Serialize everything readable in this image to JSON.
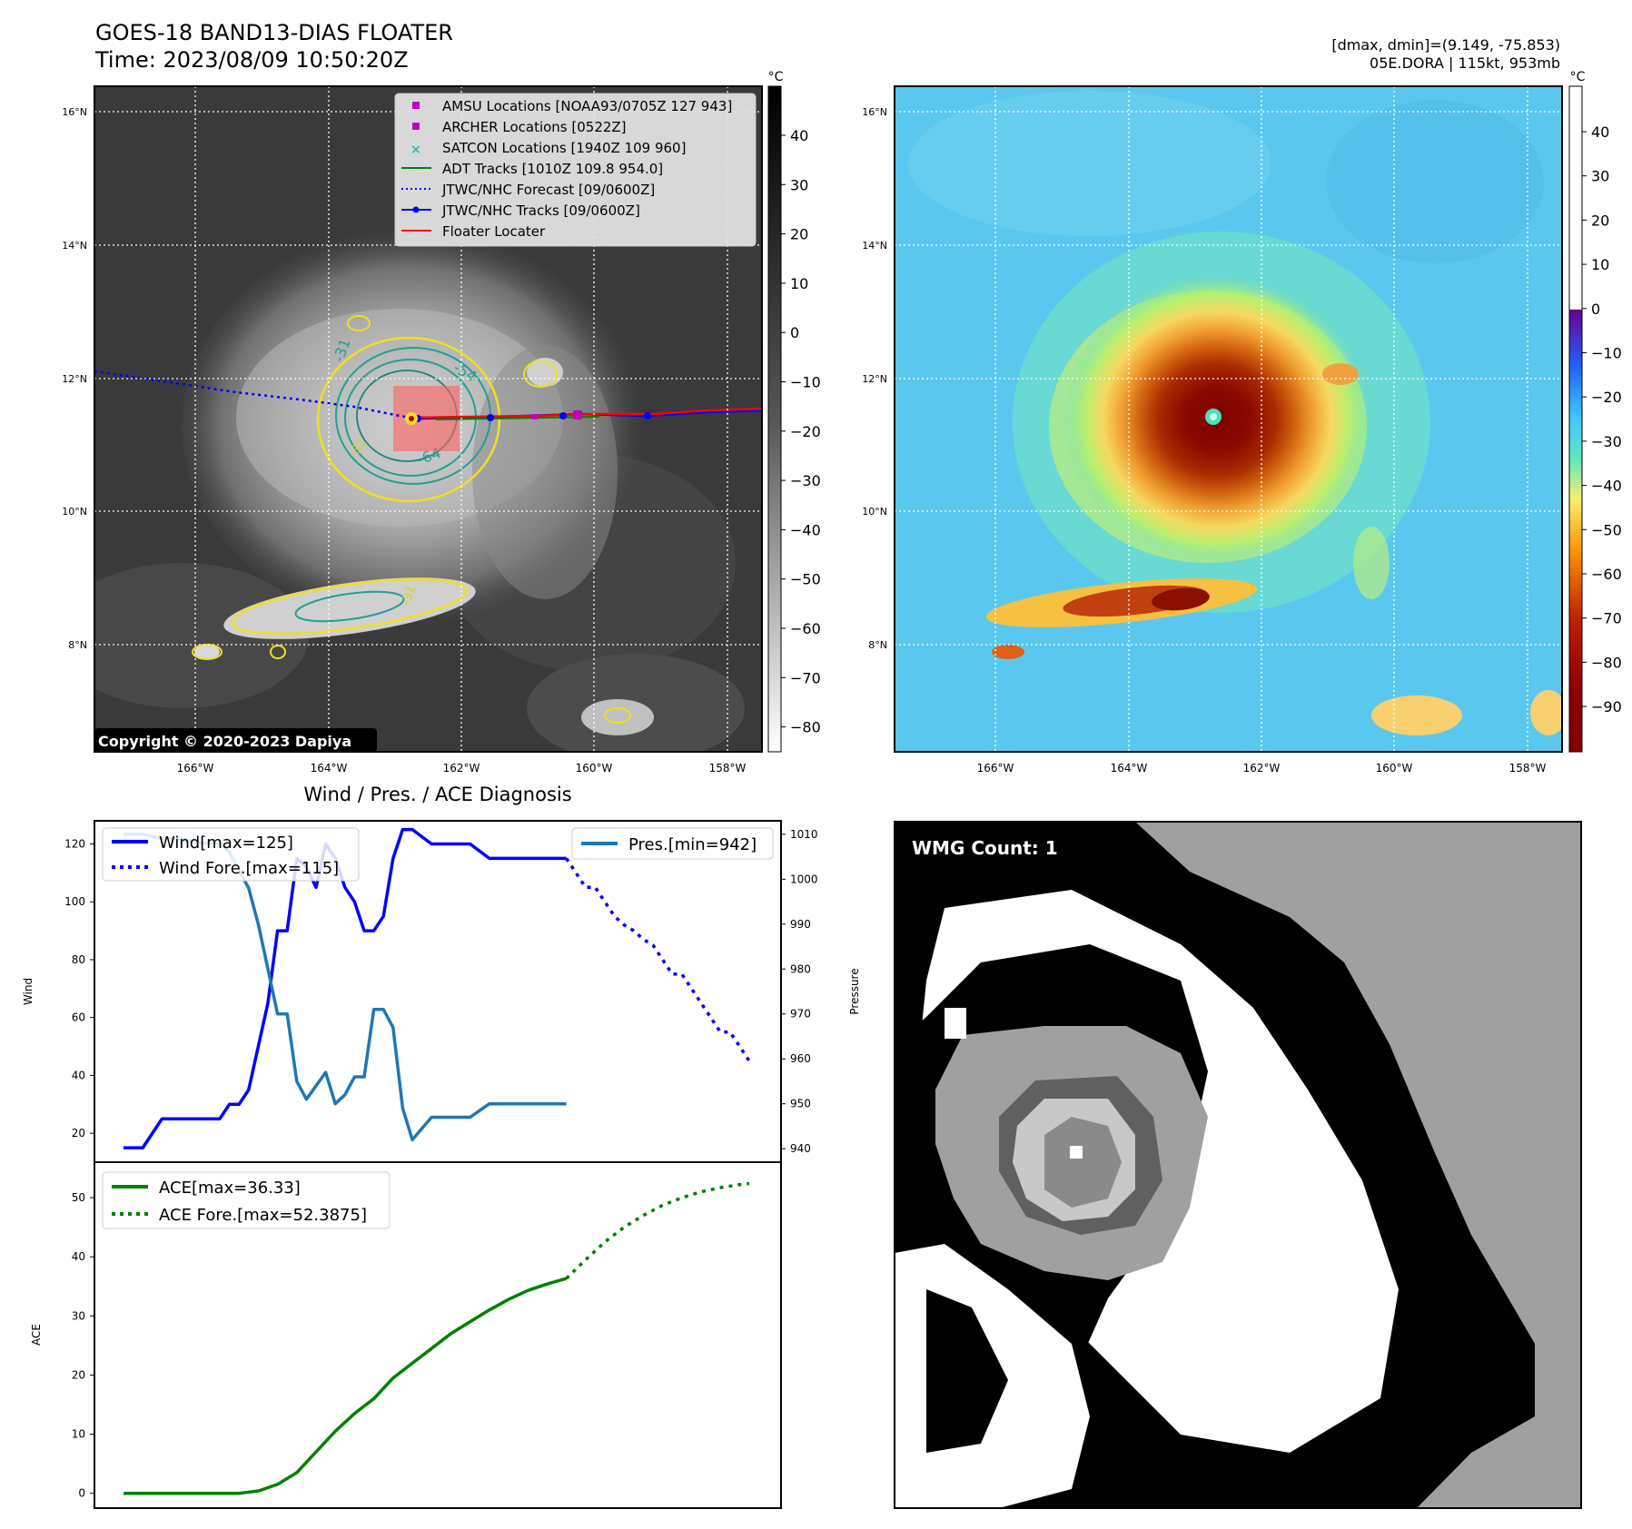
{
  "header": {
    "title_line1": "GOES-18 BAND13-DIAS FLOATER",
    "title_line2": "Time: 2023/08/09 10:50:20Z",
    "right_line1": "[dmax, dmin]=(9.149, -75.853)",
    "right_line2": "05E.DORA | 115kt, 953mb"
  },
  "map": {
    "lat_labels": [
      "16°N",
      "14°N",
      "12°N",
      "10°N",
      "8°N"
    ],
    "lon_labels": [
      "166°W",
      "164°W",
      "162°W",
      "160°W",
      "158°W"
    ],
    "copyright": "Copyright © 2020-2023 Dapiya",
    "contour_labels": [
      "-31",
      "-54",
      "-64",
      "-31",
      "-31"
    ],
    "legend": [
      {
        "label": "AMSU Locations [NOAA93/0705Z 127 943]",
        "marker": "square",
        "color": "#c000c0"
      },
      {
        "label": "ARCHER Locations [0522Z]",
        "marker": "square",
        "color": "#c000c0"
      },
      {
        "label": "SATCON Locations [1940Z 109 960]",
        "marker": "x",
        "color": "#20c0b0"
      },
      {
        "label": "ADT Tracks [1010Z 109.8 954.0]",
        "marker": "line",
        "color": "#008000"
      },
      {
        "label": "JTWC/NHC Forecast [09/0600Z]",
        "marker": "dotted",
        "color": "#0000ff"
      },
      {
        "label": "JTWC/NHC Tracks [09/0600Z]",
        "marker": "line-dot",
        "color": "#0000ff"
      },
      {
        "label": "Floater Locater",
        "marker": "line",
        "color": "#ff0000"
      }
    ]
  },
  "colorbar_gray": {
    "unit": "°C",
    "ticks": [
      "40",
      "30",
      "20",
      "10",
      "0",
      "−10",
      "−20",
      "−30",
      "−40",
      "−50",
      "−60",
      "−70",
      "−80"
    ]
  },
  "colorbar_color": {
    "unit": "°C",
    "ticks": [
      "40",
      "30",
      "20",
      "10",
      "0",
      "−10",
      "−20",
      "−30",
      "−40",
      "−50",
      "−60",
      "−70",
      "−80",
      "−90"
    ]
  },
  "wmg": {
    "label": "WMG Count: 1"
  },
  "chart_data": [
    {
      "type": "line",
      "title": "Wind / Pres. / ACE Diagnosis",
      "ylabel": "Wind",
      "ylabel_right": "Pressure",
      "ylim": [
        10,
        128
      ],
      "ylim_right": [
        937,
        1013
      ],
      "yticks": [
        "20",
        "40",
        "60",
        "80",
        "100",
        "120"
      ],
      "yticks_right": [
        "940",
        "950",
        "960",
        "970",
        "980",
        "990",
        "1000",
        "1010"
      ],
      "legend_left": [
        "Wind[max=125]",
        "Wind Fore.[max=115]"
      ],
      "legend_right": [
        "Pres.[min=942]"
      ],
      "series": [
        {
          "name": "Wind[max=125]",
          "style": "solid",
          "color": "#0000ff",
          "axis": "left",
          "x": [
            0,
            2,
            4,
            6,
            8,
            10,
            11,
            12,
            13,
            14,
            15,
            16,
            17,
            18,
            19,
            20,
            21,
            22,
            23,
            24,
            25,
            26,
            27,
            28,
            29,
            30,
            32,
            34,
            36,
            38,
            40,
            42,
            44,
            46
          ],
          "y": [
            15,
            15,
            25,
            25,
            25,
            25,
            30,
            30,
            35,
            50,
            65,
            90,
            90,
            115,
            112,
            105,
            120,
            115,
            105,
            100,
            90,
            90,
            95,
            115,
            125,
            125,
            120,
            120,
            120,
            115,
            115,
            115,
            115,
            115
          ]
        },
        {
          "name": "Wind Fore.[max=115]",
          "style": "dotted",
          "color": "#0000ff",
          "axis": "left",
          "x": [
            46,
            47,
            48,
            49,
            50,
            51,
            52,
            53,
            54,
            55,
            56,
            57,
            58,
            59,
            60,
            61,
            62,
            63,
            64,
            65
          ],
          "y": [
            115,
            110,
            105,
            105,
            100,
            95,
            92,
            90,
            87,
            85,
            80,
            75,
            75,
            70,
            65,
            60,
            55,
            55,
            50,
            45
          ]
        },
        {
          "name": "Pres.[min=942]",
          "style": "solid",
          "color": "#1f77b4",
          "axis": "right",
          "x": [
            0,
            2,
            4,
            6,
            8,
            10,
            11,
            12,
            13,
            14,
            15,
            16,
            17,
            18,
            19,
            20,
            21,
            22,
            23,
            24,
            25,
            26,
            27,
            28,
            29,
            30,
            32,
            34,
            36,
            38,
            40,
            42,
            44,
            46
          ],
          "y": [
            1010,
            1010,
            1009,
            1009,
            1008,
            1008,
            1006,
            1002,
            998,
            990,
            980,
            970,
            970,
            955,
            951,
            954,
            957,
            950,
            952,
            956,
            956,
            971,
            971,
            967,
            949,
            942,
            947,
            947,
            947,
            950,
            950,
            950,
            950,
            950
          ]
        },
        {
          "name": "ACE[max=36.33]",
          "style": "solid",
          "color": "#008000",
          "axis": "ace",
          "x": [
            0,
            4,
            8,
            12,
            14,
            16,
            18,
            20,
            22,
            24,
            26,
            28,
            30,
            32,
            34,
            36,
            38,
            40,
            42,
            44,
            46
          ],
          "y": [
            0,
            0,
            0,
            0,
            0.4,
            1.5,
            3.5,
            7,
            10.5,
            13.5,
            16,
            19.5,
            22,
            24.5,
            27,
            29,
            31,
            32.8,
            34.3,
            35.4,
            36.33
          ]
        },
        {
          "name": "ACE Fore.[max=52.3875]",
          "style": "dotted",
          "color": "#008000",
          "axis": "ace",
          "x": [
            46,
            48,
            50,
            52,
            54,
            56,
            58,
            60,
            62,
            64,
            65
          ],
          "y": [
            36.33,
            39.5,
            42.5,
            45,
            47,
            48.7,
            50,
            51,
            51.7,
            52.2,
            52.3875
          ]
        }
      ],
      "ace_ylabel": "ACE",
      "ace_ylim": [
        -2.5,
        56
      ],
      "ace_yticks": [
        "0",
        "10",
        "20",
        "30",
        "40",
        "50"
      ],
      "ace_legend": [
        "ACE[max=36.33]",
        "ACE Fore.[max=52.3875]"
      ]
    }
  ]
}
